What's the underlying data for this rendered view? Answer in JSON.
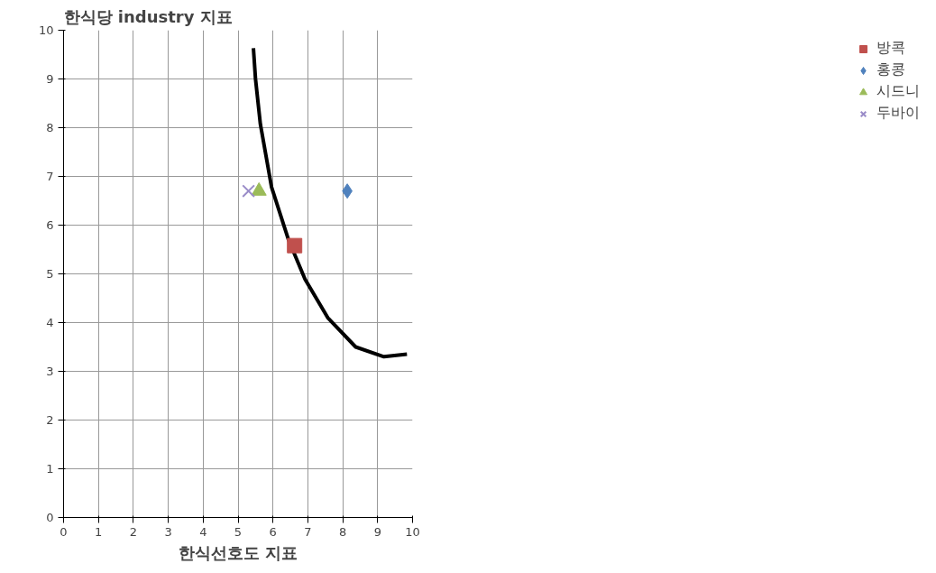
{
  "chart_data": {
    "type": "scatter",
    "ylabel": "한식당 industry 지표",
    "xlabel": "한식선호도 지표",
    "xlim": [
      0,
      10
    ],
    "ylim": [
      0,
      10
    ],
    "xticks": [
      0,
      1,
      2,
      3,
      4,
      5,
      6,
      7,
      8,
      9,
      10
    ],
    "yticks": [
      0,
      1,
      2,
      3,
      4,
      5,
      6,
      7,
      8,
      9,
      10
    ],
    "grid": true,
    "legend": "right",
    "series": [
      {
        "type": "line",
        "color": "#000000",
        "marker": "none",
        "x": [
          5.44,
          5.5,
          5.64,
          5.96,
          6.44,
          6.92,
          7.57,
          8.37,
          9.18,
          9.84
        ],
        "values": [
          9.63,
          9.0,
          8.07,
          6.78,
          5.71,
          4.89,
          4.1,
          3.5,
          3.3,
          3.35
        ]
      },
      {
        "name": "방콕",
        "color": "#c0504d",
        "marker": "square",
        "x": [
          6.62
        ],
        "values": [
          5.58
        ]
      },
      {
        "name": "홍콩",
        "color": "#4f81bd",
        "marker": "diamond",
        "x": [
          8.13
        ],
        "values": [
          6.7
        ]
      },
      {
        "name": "시드니",
        "color": "#9bbb59",
        "marker": "triangle",
        "x": [
          5.6
        ],
        "values": [
          6.7
        ]
      },
      {
        "name": "두바이",
        "color": "#9a8cc8",
        "marker": "cross",
        "x": [
          5.3
        ],
        "values": [
          6.7
        ]
      }
    ]
  }
}
